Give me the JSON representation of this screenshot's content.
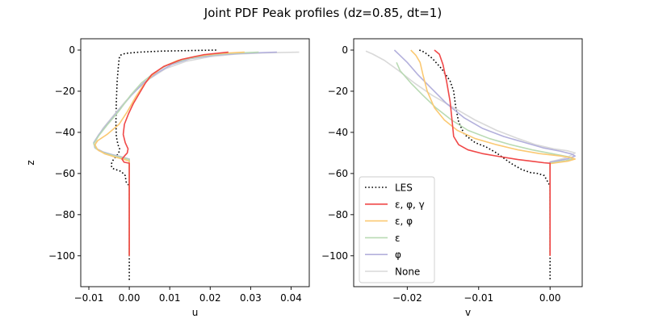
{
  "figure": {
    "suptitle": "Joint PDF Peak profiles (dz=0.85, dt=1)"
  },
  "chart_data": [
    {
      "type": "line",
      "xlabel": "u",
      "ylabel": "z",
      "xlim": [
        -0.012,
        0.0445
      ],
      "ylim": [
        -115,
        5.5
      ],
      "xticks": [
        -0.01,
        0.0,
        0.01,
        0.02,
        0.03,
        0.04
      ],
      "xtick_labels": [
        "−0.01",
        "0.00",
        "0.01",
        "0.02",
        "0.03",
        "0.04"
      ],
      "yticks": [
        0,
        -20,
        -40,
        -60,
        -80,
        -100
      ],
      "ytick_labels": [
        "0",
        "−20",
        "−40",
        "−60",
        "−80",
        "−100"
      ],
      "grid": false,
      "series": [
        {
          "name": "LES",
          "color": "#000000",
          "dash": "dotted",
          "alpha": 1.0,
          "points": [
            [
              0.0215,
              0
            ],
            [
              0.008,
              -0.5
            ],
            [
              0.0025,
              -1
            ],
            [
              -0.001,
              -1.6
            ],
            [
              -0.0022,
              -2.5
            ],
            [
              -0.0025,
              -4
            ],
            [
              -0.0027,
              -8
            ],
            [
              -0.003,
              -15
            ],
            [
              -0.0032,
              -25
            ],
            [
              -0.0033,
              -35
            ],
            [
              -0.0032,
              -42
            ],
            [
              -0.0028,
              -46
            ],
            [
              -0.0024,
              -48
            ],
            [
              -0.0026,
              -50
            ],
            [
              -0.0034,
              -52
            ],
            [
              -0.0042,
              -54
            ],
            [
              -0.0045,
              -56
            ],
            [
              -0.0042,
              -57.5
            ],
            [
              -0.002,
              -59
            ],
            [
              -0.001,
              -61
            ],
            [
              -0.0008,
              -64
            ],
            [
              0.0,
              -66
            ],
            [
              0.0,
              -112
            ]
          ]
        },
        {
          "name": "None",
          "color": "#d9d9d9",
          "dash": "solid",
          "alpha": 1.0,
          "points": [
            [
              0.042,
              -1
            ],
            [
              0.033,
              -1.4
            ],
            [
              0.026,
              -2
            ],
            [
              0.02,
              -3.2
            ],
            [
              0.014,
              -5.5
            ],
            [
              0.009,
              -9
            ],
            [
              0.005,
              -14
            ],
            [
              0.002,
              -19
            ],
            [
              -0.001,
              -25
            ],
            [
              -0.004,
              -32
            ],
            [
              -0.0065,
              -38
            ],
            [
              -0.008,
              -43
            ],
            [
              -0.0085,
              -47
            ],
            [
              -0.0075,
              -49
            ],
            [
              -0.005,
              -50.5
            ],
            [
              -0.0025,
              -51.5
            ],
            [
              -0.001,
              -52.3
            ],
            [
              0.0,
              -53
            ],
            [
              0.0,
              -100
            ]
          ]
        },
        {
          "name": "φ",
          "color": "#b3b0dc",
          "dash": "solid",
          "alpha": 1.0,
          "points": [
            [
              0.0365,
              -1
            ],
            [
              0.028,
              -1.6
            ],
            [
              0.021,
              -2.5
            ],
            [
              0.015,
              -4.2
            ],
            [
              0.0105,
              -7
            ],
            [
              0.007,
              -11
            ],
            [
              0.0035,
              -16
            ],
            [
              0.0005,
              -22
            ],
            [
              -0.0025,
              -29
            ],
            [
              -0.0055,
              -36
            ],
            [
              -0.0075,
              -41
            ],
            [
              -0.0088,
              -45
            ],
            [
              -0.0085,
              -47.5
            ],
            [
              -0.0065,
              -49.5
            ],
            [
              -0.004,
              -51
            ],
            [
              -0.0015,
              -52.3
            ],
            [
              0.0,
              -53
            ],
            [
              0.0,
              -100
            ]
          ]
        },
        {
          "name": "ε",
          "color": "#b9dab3",
          "dash": "solid",
          "alpha": 1.0,
          "points": [
            [
              0.032,
              -1
            ],
            [
              0.025,
              -1.6
            ],
            [
              0.019,
              -2.6
            ],
            [
              0.014,
              -4.4
            ],
            [
              0.0095,
              -7.2
            ],
            [
              0.0062,
              -11
            ],
            [
              0.003,
              -16
            ],
            [
              0.0003,
              -22
            ],
            [
              -0.0025,
              -29.5
            ],
            [
              -0.0055,
              -36.5
            ],
            [
              -0.0075,
              -41.5
            ],
            [
              -0.0088,
              -45.5
            ],
            [
              -0.0082,
              -48
            ],
            [
              -0.0062,
              -50
            ],
            [
              -0.0035,
              -51.5
            ],
            [
              -0.0012,
              -52.6
            ],
            [
              0.0,
              -53.2
            ],
            [
              0.0,
              -100
            ]
          ]
        },
        {
          "name": "ε, φ",
          "color": "#fbc973",
          "dash": "solid",
          "alpha": 1.0,
          "points": [
            [
              0.0285,
              -1
            ],
            [
              0.022,
              -1.7
            ],
            [
              0.0165,
              -3
            ],
            [
              0.012,
              -5
            ],
            [
              0.0085,
              -8
            ],
            [
              0.0058,
              -12
            ],
            [
              0.0035,
              -17
            ],
            [
              0.0015,
              -23
            ],
            [
              -0.0005,
              -30
            ],
            [
              -0.0025,
              -36
            ],
            [
              -0.0055,
              -41
            ],
            [
              -0.0078,
              -44
            ],
            [
              -0.0085,
              -46
            ],
            [
              -0.0078,
              -48.5
            ],
            [
              -0.006,
              -50.5
            ],
            [
              -0.0035,
              -52
            ],
            [
              -0.0012,
              -53.2
            ],
            [
              0.0,
              -54
            ],
            [
              0.0,
              -100
            ]
          ]
        },
        {
          "name": "ε, φ, γ",
          "color": "#f04848",
          "dash": "solid",
          "alpha": 1.0,
          "points": [
            [
              0.0245,
              -1
            ],
            [
              0.0185,
              -2.2
            ],
            [
              0.013,
              -4.5
            ],
            [
              0.0085,
              -8
            ],
            [
              0.0055,
              -12
            ],
            [
              0.004,
              -16
            ],
            [
              0.0025,
              -21
            ],
            [
              0.001,
              -26
            ],
            [
              -0.0002,
              -31
            ],
            [
              -0.0012,
              -36
            ],
            [
              -0.0015,
              -41
            ],
            [
              -0.001,
              -45
            ],
            [
              -0.0003,
              -48
            ],
            [
              -0.0005,
              -50
            ],
            [
              -0.0012,
              -51.5
            ],
            [
              -0.0018,
              -53
            ],
            [
              -0.0013,
              -54.5
            ],
            [
              0.0,
              -55
            ],
            [
              0.0,
              -100
            ]
          ]
        }
      ]
    },
    {
      "type": "line",
      "xlabel": "v",
      "ylabel": "",
      "xlim": [
        -0.0275,
        0.0045
      ],
      "ylim": [
        -115,
        5.5
      ],
      "xticks": [
        -0.02,
        -0.01,
        0.0
      ],
      "xtick_labels": [
        "−0.02",
        "−0.01",
        "0.00"
      ],
      "yticks": [
        0,
        -20,
        -40,
        -60,
        -80,
        -100
      ],
      "ytick_labels": [
        "0",
        "−20",
        "−40",
        "−60",
        "−80",
        "−100"
      ],
      "grid": false,
      "legend": {
        "location": "lower-left",
        "entries": [
          "LES",
          "ε, φ, γ",
          "ε, φ",
          "ε",
          "φ",
          "None"
        ]
      },
      "series": [
        {
          "name": "LES",
          "color": "#000000",
          "dash": "dotted",
          "alpha": 1.0,
          "points": [
            [
              -0.0183,
              0
            ],
            [
              -0.0176,
              -1
            ],
            [
              -0.0165,
              -4
            ],
            [
              -0.0152,
              -9
            ],
            [
              -0.014,
              -15
            ],
            [
              -0.0135,
              -20
            ],
            [
              -0.0132,
              -28
            ],
            [
              -0.0128,
              -35
            ],
            [
              -0.012,
              -41
            ],
            [
              -0.0105,
              -45
            ],
            [
              -0.009,
              -47
            ],
            [
              -0.0075,
              -50
            ],
            [
              -0.0055,
              -55
            ],
            [
              -0.004,
              -58
            ],
            [
              -0.0028,
              -59.5
            ],
            [
              -0.0017,
              -60
            ],
            [
              -0.0008,
              -61
            ],
            [
              -0.0005,
              -63
            ],
            [
              0.0,
              -66
            ],
            [
              0.0,
              -112
            ]
          ]
        },
        {
          "name": "None",
          "color": "#d9d9d9",
          "dash": "solid",
          "alpha": 1.0,
          "points": [
            [
              -0.0258,
              -0.5
            ],
            [
              -0.0248,
              -2
            ],
            [
              -0.0232,
              -5
            ],
            [
              -0.0212,
              -10
            ],
            [
              -0.019,
              -16
            ],
            [
              -0.0165,
              -22
            ],
            [
              -0.0135,
              -28
            ],
            [
              -0.0105,
              -34
            ],
            [
              -0.0075,
              -39
            ],
            [
              -0.0045,
              -43
            ],
            [
              -0.002,
              -46
            ],
            [
              0.0005,
              -48
            ],
            [
              0.0025,
              -49
            ],
            [
              0.0035,
              -50
            ],
            [
              0.0025,
              -52
            ],
            [
              0.001,
              -53.5
            ],
            [
              0.0,
              -54.2
            ],
            [
              0.0,
              -100
            ]
          ]
        },
        {
          "name": "φ",
          "color": "#b3b0dc",
          "dash": "solid",
          "alpha": 1.0,
          "points": [
            [
              -0.0218,
              0
            ],
            [
              -0.0212,
              -2
            ],
            [
              -0.02,
              -6
            ],
            [
              -0.0185,
              -12
            ],
            [
              -0.0165,
              -19
            ],
            [
              -0.0145,
              -26
            ],
            [
              -0.012,
              -33
            ],
            [
              -0.0095,
              -38
            ],
            [
              -0.0065,
              -42
            ],
            [
              -0.0035,
              -45
            ],
            [
              -0.001,
              -47.5
            ],
            [
              0.0015,
              -49.2
            ],
            [
              0.003,
              -50.5
            ],
            [
              0.0035,
              -51.5
            ],
            [
              0.0025,
              -52.8
            ],
            [
              0.0008,
              -54
            ],
            [
              0.0,
              -54.5
            ],
            [
              0.0,
              -100
            ]
          ]
        },
        {
          "name": "ε",
          "color": "#b9dab3",
          "dash": "solid",
          "alpha": 1.0,
          "points": [
            [
              -0.0215,
              -6
            ],
            [
              -0.021,
              -10
            ],
            [
              -0.0195,
              -16
            ],
            [
              -0.0178,
              -22
            ],
            [
              -0.016,
              -28
            ],
            [
              -0.0138,
              -34
            ],
            [
              -0.0115,
              -39
            ],
            [
              -0.0085,
              -43
            ],
            [
              -0.0055,
              -46
            ],
            [
              -0.0025,
              -48.5
            ],
            [
              0.0005,
              -50.5
            ],
            [
              0.0025,
              -51.8
            ],
            [
              0.0032,
              -52.8
            ],
            [
              0.0022,
              -53.8
            ],
            [
              0.0008,
              -54.5
            ],
            [
              0.0,
              -55
            ],
            [
              0.0,
              -100
            ]
          ]
        },
        {
          "name": "ε, φ",
          "color": "#fbc973",
          "dash": "solid",
          "alpha": 1.0,
          "points": [
            [
              -0.0195,
              0
            ],
            [
              -0.0188,
              -2.5
            ],
            [
              -0.0182,
              -6
            ],
            [
              -0.0178,
              -12
            ],
            [
              -0.0172,
              -20
            ],
            [
              -0.0162,
              -28
            ],
            [
              -0.0148,
              -34
            ],
            [
              -0.013,
              -39
            ],
            [
              -0.0105,
              -43
            ],
            [
              -0.0075,
              -46
            ],
            [
              -0.0045,
              -48.5
            ],
            [
              -0.0015,
              -50.3
            ],
            [
              0.0015,
              -51.5
            ],
            [
              0.003,
              -52.3
            ],
            [
              0.0035,
              -53
            ],
            [
              0.0025,
              -54
            ],
            [
              0.0008,
              -54.8
            ],
            [
              0.0,
              -55.2
            ],
            [
              0.0,
              -100
            ]
          ]
        },
        {
          "name": "ε, φ, γ",
          "color": "#f04848",
          "dash": "solid",
          "alpha": 1.0,
          "points": [
            [
              -0.0162,
              0
            ],
            [
              -0.0155,
              -2
            ],
            [
              -0.015,
              -7
            ],
            [
              -0.0145,
              -15
            ],
            [
              -0.014,
              -25
            ],
            [
              -0.0137,
              -35
            ],
            [
              -0.0135,
              -42
            ],
            [
              -0.0128,
              -46
            ],
            [
              -0.0115,
              -48.5
            ],
            [
              -0.0095,
              -50.3
            ],
            [
              -0.007,
              -51.8
            ],
            [
              -0.0045,
              -53.2
            ],
            [
              -0.0022,
              -54.2
            ],
            [
              -0.0008,
              -54.8
            ],
            [
              0.0,
              -55
            ],
            [
              0.0,
              -100
            ]
          ]
        }
      ]
    }
  ]
}
